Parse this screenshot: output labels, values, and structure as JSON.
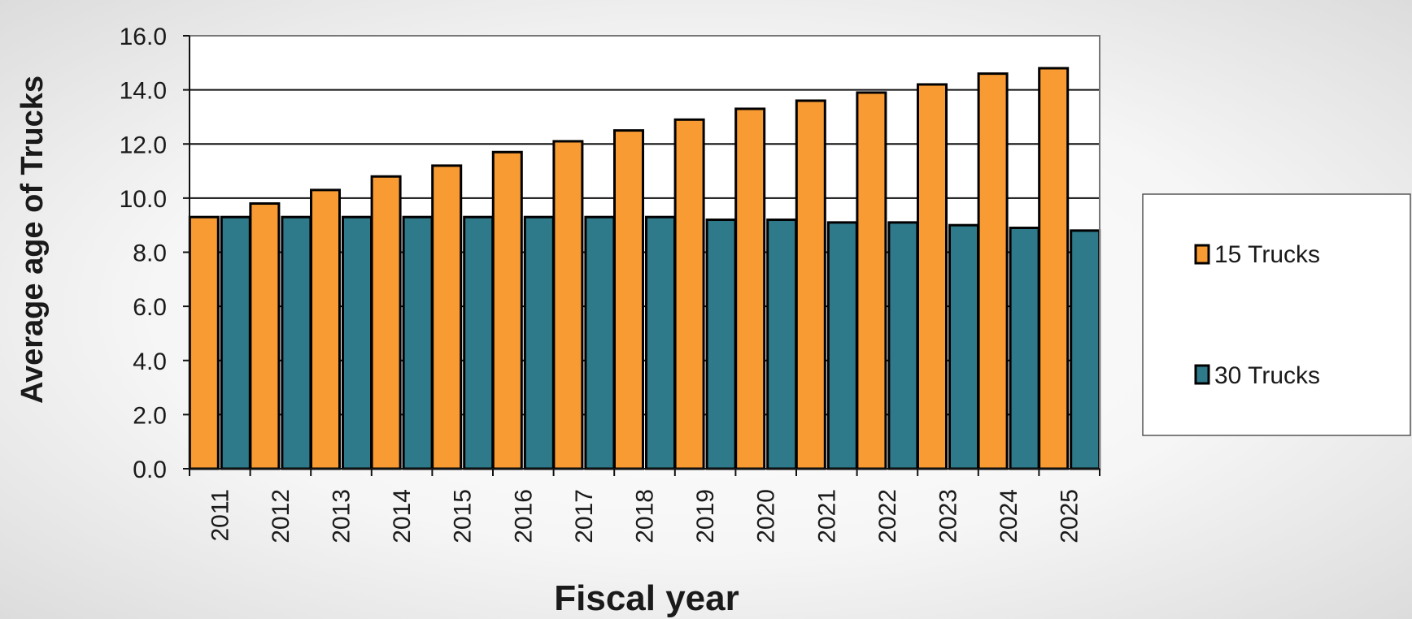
{
  "chart_data": {
    "type": "bar",
    "title": "",
    "xlabel": "Fiscal year",
    "ylabel": "Average age of Trucks",
    "ylim": [
      0,
      16
    ],
    "ytick_step": 2,
    "ytick_labels": [
      "0.0",
      "2.0",
      "4.0",
      "6.0",
      "8.0",
      "10.0",
      "12.0",
      "14.0",
      "16.0"
    ],
    "grid": true,
    "legend_position": "right",
    "categories": [
      "2011",
      "2012",
      "2013",
      "2014",
      "2015",
      "2016",
      "2017",
      "2018",
      "2019",
      "2020",
      "2021",
      "2022",
      "2023",
      "2024",
      "2025"
    ],
    "series": [
      {
        "name": "15 Trucks",
        "color": "#F99B33",
        "values": [
          9.3,
          9.8,
          10.3,
          10.8,
          11.2,
          11.7,
          12.1,
          12.5,
          12.9,
          13.3,
          13.6,
          13.9,
          14.2,
          14.6,
          14.8
        ]
      },
      {
        "name": "30 Trucks",
        "color": "#2E7A8A",
        "values": [
          9.3,
          9.3,
          9.3,
          9.3,
          9.3,
          9.3,
          9.3,
          9.3,
          9.2,
          9.2,
          9.1,
          9.1,
          9.0,
          8.9,
          8.8
        ]
      }
    ]
  }
}
